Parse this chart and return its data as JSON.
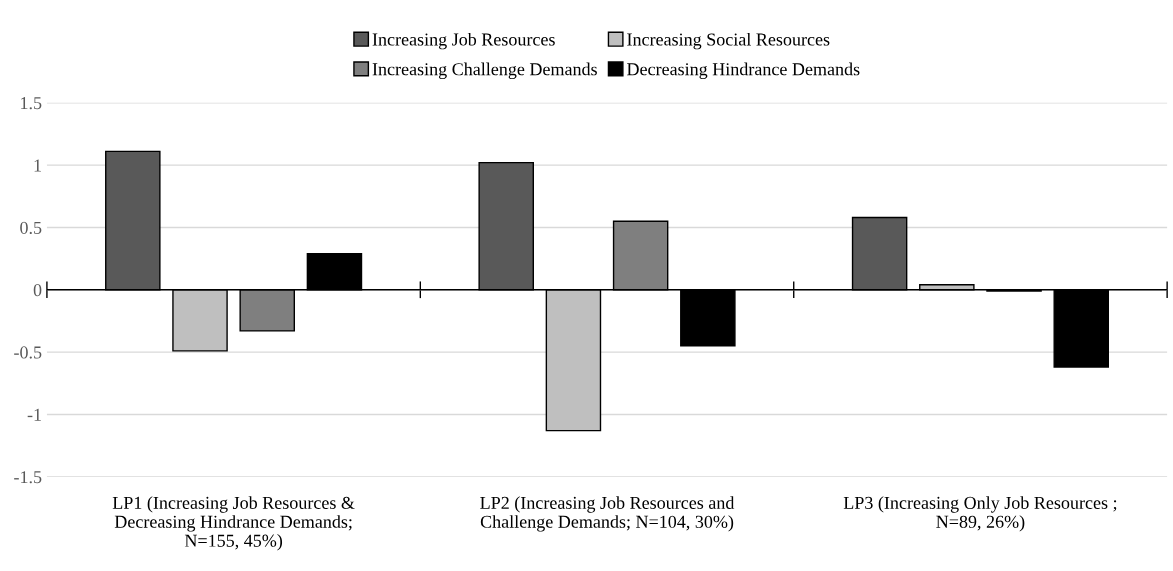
{
  "chart_data": {
    "type": "bar",
    "categories": [
      "LP1 (Increasing Job Resources &\nDecreasing Hindrance Demands;\nN=155, 45%)",
      "LP2 (Increasing Job Resources and\nChallenge Demands; N=104, 30%)",
      "LP3 (Increasing Only Job Resources ;\nN=89, 26%)"
    ],
    "series": [
      {
        "name": "Increasing Job Resources",
        "color": "#595959",
        "values": [
          1.11,
          1.02,
          0.58
        ]
      },
      {
        "name": "Increasing Social Resources",
        "color": "#bfbfbf",
        "values": [
          -0.49,
          -1.13,
          0.04
        ]
      },
      {
        "name": "Increasing Challenge Demands",
        "color": "#7f7f7f",
        "values": [
          -0.33,
          0.55,
          -0.01
        ]
      },
      {
        "name": "Decreasing Hindrance Demands",
        "color": "#000000",
        "values": [
          0.29,
          -0.45,
          -0.62
        ]
      }
    ],
    "ylim": [
      -1.5,
      1.5
    ],
    "yticks": [
      -1.5,
      -1,
      -0.5,
      0,
      0.5,
      1,
      1.5
    ],
    "grid": "y",
    "legend": "top"
  }
}
